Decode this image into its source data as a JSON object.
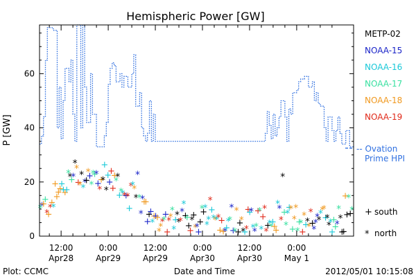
{
  "chart_data": {
    "type": "scatter",
    "title": "Hemispheric Power [GW]",
    "xlabel": "Date and Time",
    "ylabel": "P [GW]",
    "ylim": [
      0,
      78
    ],
    "y_ticks": [
      0,
      20,
      40,
      60
    ],
    "x_hours_range": [
      -17.5,
      62.5
    ],
    "x_ticks": [
      {
        "t": -12,
        "line1": "12:00",
        "line2": "Apr28"
      },
      {
        "t": 0,
        "line1": "0:00",
        "line2": "Apr29"
      },
      {
        "t": 12,
        "line1": "12:00",
        "line2": "Apr29"
      },
      {
        "t": 24,
        "line1": "0:00",
        "line2": "Apr30"
      },
      {
        "t": 36,
        "line1": "12:00",
        "line2": "Apr30"
      },
      {
        "t": 48,
        "line1": "0:00",
        "line2": "May 1"
      }
    ],
    "legend": [
      {
        "name": "METP-02",
        "color": "#000000"
      },
      {
        "name": "NOAA-15",
        "color": "#1a24c8"
      },
      {
        "name": "NOAA-16",
        "color": "#18c8d8"
      },
      {
        "name": "NOAA-17",
        "color": "#38e0a0"
      },
      {
        "name": "NOAA-18",
        "color": "#f0981e"
      },
      {
        "name": "NOAA-19",
        "color": "#e02818"
      }
    ],
    "ovation": {
      "label_line1": "-- Ovation",
      "label_line2": "Prime HPI",
      "color": "#3070e0",
      "values": [
        [
          -17.5,
          34
        ],
        [
          -17,
          34
        ],
        [
          -17,
          37
        ],
        [
          -16.5,
          37
        ],
        [
          -16.5,
          44
        ],
        [
          -16,
          44
        ],
        [
          -16,
          65
        ],
        [
          -15.5,
          65
        ],
        [
          -15.5,
          77
        ],
        [
          -14,
          77
        ],
        [
          -14,
          76
        ],
        [
          -13,
          76
        ],
        [
          -13,
          40
        ],
        [
          -12.5,
          40
        ],
        [
          -12.5,
          55
        ],
        [
          -12,
          55
        ],
        [
          -12,
          36
        ],
        [
          -11.5,
          36
        ],
        [
          -11.5,
          50
        ],
        [
          -11,
          50
        ],
        [
          -11,
          62
        ],
        [
          -10,
          62
        ],
        [
          -10,
          57
        ],
        [
          -9.5,
          57
        ],
        [
          -9.5,
          65
        ],
        [
          -9,
          65
        ],
        [
          -9,
          45
        ],
        [
          -8.5,
          45
        ],
        [
          -8.5,
          35
        ],
        [
          -8,
          35
        ],
        [
          -8,
          78
        ],
        [
          -7,
          78
        ],
        [
          -7,
          40
        ],
        [
          -6.5,
          40
        ],
        [
          -6.5,
          78
        ],
        [
          -6,
          78
        ],
        [
          -6,
          55
        ],
        [
          -5.5,
          55
        ],
        [
          -5.5,
          42
        ],
        [
          -4.5,
          42
        ],
        [
          -4.5,
          60
        ],
        [
          -4,
          60
        ],
        [
          -4,
          45
        ],
        [
          -3,
          45
        ],
        [
          -3,
          33
        ],
        [
          -1,
          33
        ],
        [
          -1,
          37
        ],
        [
          -0.5,
          37
        ],
        [
          -0.5,
          42
        ],
        [
          0,
          42
        ],
        [
          0,
          56
        ],
        [
          0.5,
          56
        ],
        [
          0.5,
          62
        ],
        [
          1,
          62
        ],
        [
          1,
          64
        ],
        [
          1.5,
          64
        ],
        [
          1.5,
          63
        ],
        [
          2,
          63
        ],
        [
          2,
          57
        ],
        [
          3,
          57
        ],
        [
          3,
          60
        ],
        [
          3.5,
          60
        ],
        [
          3.5,
          55
        ],
        [
          4,
          55
        ],
        [
          4,
          59
        ],
        [
          5,
          59
        ],
        [
          5,
          55
        ],
        [
          6,
          55
        ],
        [
          6,
          60
        ],
        [
          6.5,
          60
        ],
        [
          6.5,
          67
        ],
        [
          7,
          67
        ],
        [
          7,
          48
        ],
        [
          8,
          48
        ],
        [
          8,
          53
        ],
        [
          8.5,
          53
        ],
        [
          8.5,
          40
        ],
        [
          9,
          40
        ],
        [
          9,
          37
        ],
        [
          9.5,
          37
        ],
        [
          9.5,
          35
        ],
        [
          10,
          35
        ],
        [
          10,
          38
        ],
        [
          10.5,
          38
        ],
        [
          10.5,
          50
        ],
        [
          11,
          50
        ],
        [
          11,
          35
        ],
        [
          11.5,
          35
        ],
        [
          11.5,
          45
        ],
        [
          12,
          45
        ],
        [
          12,
          35
        ],
        [
          40,
          35
        ],
        [
          40,
          38
        ],
        [
          40.5,
          38
        ],
        [
          40.5,
          46
        ],
        [
          41,
          46
        ],
        [
          41,
          41
        ],
        [
          41.5,
          41
        ],
        [
          41.5,
          36
        ],
        [
          42,
          36
        ],
        [
          42,
          45
        ],
        [
          42.5,
          45
        ],
        [
          42.5,
          37
        ],
        [
          43,
          37
        ],
        [
          43,
          40
        ],
        [
          43.5,
          40
        ],
        [
          43.5,
          44
        ],
        [
          44,
          44
        ],
        [
          44,
          50
        ],
        [
          45,
          50
        ],
        [
          45,
          44
        ],
        [
          45.5,
          44
        ],
        [
          45.5,
          35
        ],
        [
          46,
          35
        ],
        [
          46,
          47
        ],
        [
          46.5,
          47
        ],
        [
          46.5,
          45
        ],
        [
          47,
          45
        ],
        [
          47,
          53
        ],
        [
          48,
          53
        ],
        [
          48,
          54
        ],
        [
          48.5,
          54
        ],
        [
          48.5,
          57
        ],
        [
          49,
          57
        ],
        [
          49,
          58
        ],
        [
          50,
          58
        ],
        [
          50,
          59
        ],
        [
          51,
          59
        ],
        [
          51,
          55
        ],
        [
          52,
          55
        ],
        [
          52,
          57
        ],
        [
          52.5,
          57
        ],
        [
          52.5,
          50
        ],
        [
          53,
          50
        ],
        [
          53,
          53
        ],
        [
          53.5,
          53
        ],
        [
          53.5,
          49
        ],
        [
          54,
          49
        ],
        [
          54,
          48
        ],
        [
          55,
          48
        ],
        [
          55,
          40
        ],
        [
          55.5,
          40
        ],
        [
          55.5,
          35
        ],
        [
          56,
          35
        ],
        [
          56,
          44
        ],
        [
          57,
          44
        ],
        [
          57,
          39
        ],
        [
          57.5,
          39
        ],
        [
          57.5,
          35
        ],
        [
          58,
          35
        ],
        [
          58,
          39
        ],
        [
          58.5,
          39
        ],
        [
          58.5,
          44
        ],
        [
          59,
          44
        ],
        [
          59,
          38
        ],
        [
          59.5,
          38
        ],
        [
          59.5,
          34
        ],
        [
          60.5,
          34
        ],
        [
          60.5,
          39
        ],
        [
          61.5,
          39
        ],
        [
          61.5,
          33
        ],
        [
          62.5,
          33
        ]
      ]
    },
    "symbol_legend": [
      {
        "symbol": "+",
        "label": "south"
      },
      {
        "symbol": "*",
        "label": "north"
      }
    ]
  },
  "footer": {
    "left": "Plot: CCMC",
    "center": "Date and Time",
    "right": "2012/05/01  10:15:08"
  }
}
